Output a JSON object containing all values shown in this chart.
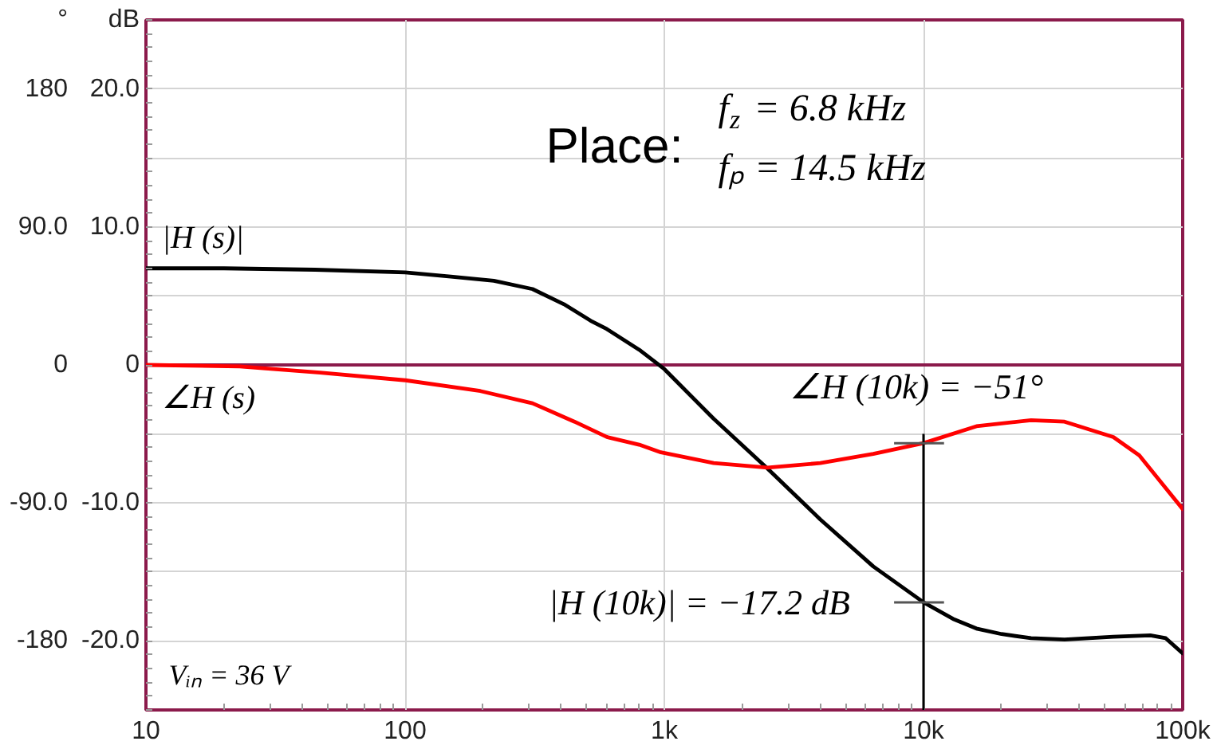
{
  "chart_data": {
    "type": "line",
    "ylabel": "dB",
    "y2label": "°",
    "log": "x",
    "grid": true,
    "xlim": [
      10,
      100000
    ],
    "xticks": [
      10,
      100,
      {
        "value": 1000,
        "label": "1k"
      },
      {
        "value": 10000,
        "label": "10k"
      },
      {
        "value": 100000,
        "label": "100k"
      }
    ],
    "ylim": [
      -25,
      25
    ],
    "yticks": [
      {
        "value": -20,
        "label": "-20.0"
      },
      {
        "value": -15,
        "label": null
      },
      {
        "value": -10,
        "label": "-10.0"
      },
      {
        "value": -5,
        "label": null
      },
      0,
      {
        "value": 5,
        "label": null
      },
      {
        "value": 10,
        "label": "10.0"
      },
      {
        "value": 15,
        "label": null
      },
      {
        "value": 20,
        "label": "20.0"
      }
    ],
    "y2lim": [
      -225,
      225
    ],
    "y2ticks": [
      -180,
      {
        "value": -90,
        "label": "-90.0"
      },
      0,
      {
        "value": 90,
        "label": "90.0"
      },
      180
    ],
    "series": [
      {
        "name": "|H (s)|",
        "color": "#000000",
        "x": [
          10,
          20,
          45,
          100,
          150,
          220,
          310,
          410,
          520,
          600,
          800,
          1000,
          1550,
          2500,
          4000,
          6400,
          10000,
          13000,
          16000,
          20000,
          26000,
          35000,
          54000,
          75000,
          86000,
          100000
        ],
        "values": [
          7.0,
          7.0,
          6.9,
          6.7,
          6.4,
          6.1,
          5.5,
          4.4,
          3.2,
          2.6,
          1.1,
          -0.3,
          -3.9,
          -7.5,
          -11.2,
          -14.6,
          -17.2,
          -18.4,
          -19.1,
          -19.5,
          -19.8,
          -19.9,
          -19.7,
          -19.6,
          -19.8,
          -20.9
        ]
      },
      {
        "name": "∠H (s)",
        "color": "#ff0000",
        "axis": "y2",
        "x": [
          10,
          23,
          47,
          100,
          195,
          310,
          450,
          600,
          800,
          970,
          1550,
          2500,
          4000,
          6400,
          10000,
          16000,
          26000,
          35000,
          54000,
          68000,
          82000,
          100000
        ],
        "values": [
          0,
          -1,
          -5,
          -10,
          -17,
          -25,
          -37,
          -47,
          -52,
          -57,
          -64,
          -67,
          -64,
          -58,
          -51,
          -40,
          -36,
          -37,
          -47,
          -59,
          -76,
          -94
        ]
      },
      {
        "color": "#000000",
        "x": [
          10000,
          10000
        ],
        "values": [
          -25,
          -5.0
        ]
      },
      {
        "color": "#555555",
        "x": [
          7700,
          12000
        ],
        "values": [
          -17.2,
          -17.2
        ]
      },
      {
        "color": "#555555",
        "axis": "y2",
        "x": [
          7700,
          12000
        ],
        "values": [
          -51,
          -51
        ]
      }
    ],
    "ref_lines": [
      {
        "axis": "y",
        "value": 0,
        "color": "#8b1a4b"
      }
    ],
    "annotations": [
      "Place:",
      "f$_{z}$ = 6.8 kHz",
      "fₚ = 14.5 kHz",
      "∠H (10k) = −51°",
      {
        "text": "|H (10k)| = −17.2 dB",
        "x": 10000,
        "y": -17.2
      },
      "Vᵢₙ = 36 V"
    ]
  }
}
